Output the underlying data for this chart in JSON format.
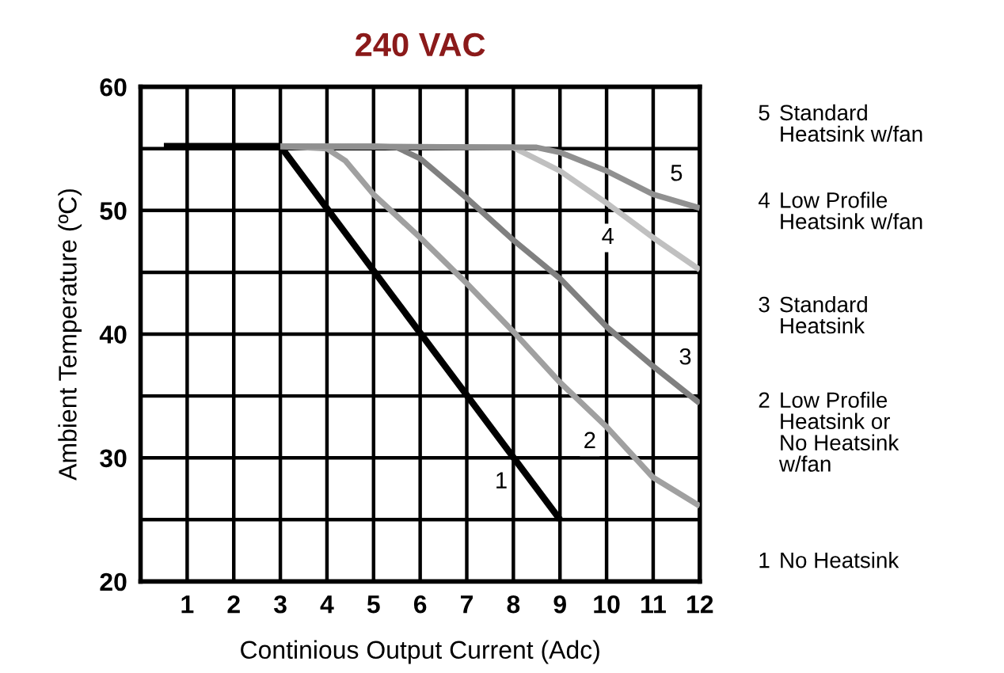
{
  "chart_data": {
    "type": "line",
    "title": "240 VAC",
    "xlabel": "Continious Output Current (Adc)",
    "ylabel": "Ambient Temperature (ºC)",
    "xlim": [
      0,
      12
    ],
    "xticks": [
      1,
      2,
      3,
      4,
      5,
      6,
      7,
      8,
      9,
      10,
      11,
      12
    ],
    "ylim": [
      20,
      60
    ],
    "yticks": [
      20,
      {
        "value": 25,
        "label": null
      },
      30,
      {
        "value": 35,
        "label": null
      },
      40,
      {
        "value": 45,
        "label": null
      },
      50,
      {
        "value": 55,
        "label": null
      },
      60
    ],
    "grid": true,
    "legend": false,
    "marker": "none",
    "line_style": "solid",
    "tick_labels": true,
    "series": [
      {
        "name": "1",
        "color": "#000000",
        "x": [
          0.5,
          3,
          9
        ],
        "values": [
          55.2,
          55.2,
          25
        ]
      },
      {
        "name": "2",
        "color": "#a0a0a0",
        "x": [
          3,
          4,
          4.4,
          5,
          6,
          7,
          8,
          9,
          10,
          11,
          12
        ],
        "values": [
          55.2,
          55,
          54,
          51.3,
          47.8,
          44.1,
          40.2,
          36.1,
          32.5,
          28.4,
          26.1
        ]
      },
      {
        "name": "3",
        "color": "#808080",
        "x": [
          3,
          5,
          5.5,
          6,
          7,
          8,
          9,
          10,
          11,
          12
        ],
        "values": [
          55.2,
          55.2,
          55.1,
          54.2,
          51,
          47.6,
          44.5,
          40.6,
          37.4,
          34.4
        ]
      },
      {
        "name": "4",
        "color": "#c0c0c0",
        "x": [
          3,
          8,
          9,
          10,
          11,
          12
        ],
        "values": [
          55.2,
          55.1,
          53.2,
          50.6,
          47.8,
          45.2
        ]
      },
      {
        "name": "5",
        "color": "#909090",
        "x": [
          3,
          8.5,
          9,
          10,
          11,
          12
        ],
        "values": [
          55.2,
          55.1,
          54.7,
          53.2,
          51.3,
          50.2
        ]
      }
    ],
    "annotations": [
      "5 Standard\nHeatsink w/fan",
      "4 Low Profile\nHeatsink w/fan",
      "3 Standard\nHeatsink",
      "2 Low Profile\nHeatsink or\nNo Heatsink\nw/fan",
      "1 No Heatsink"
    ]
  }
}
